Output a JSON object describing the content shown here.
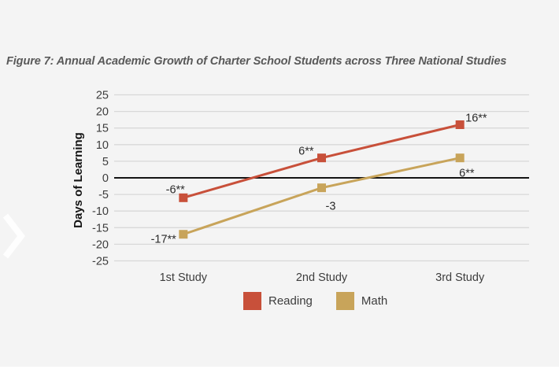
{
  "page": {
    "background_color": "#f4f4f4",
    "bottom_strip_color": "#ffffff"
  },
  "carousel": {
    "next_arrow": "chevron-right",
    "arrow_color": "#ffffff"
  },
  "chart_data": {
    "type": "line",
    "title": "Figure 7: Annual Academic Growth of Charter School Students across Three National Studies",
    "xlabel": "",
    "ylabel": "Days of Learning",
    "categories": [
      "1st Study",
      "2nd Study",
      "3rd Study"
    ],
    "ylim": [
      -25,
      25
    ],
    "ytick_step": 5,
    "yticks": [
      25,
      20,
      15,
      10,
      5,
      0,
      -5,
      -10,
      -15,
      -20,
      -25
    ],
    "grid": true,
    "gridline_color": "#d8d8d8",
    "zero_line_color": "#141414",
    "legend_position": "bottom",
    "series": [
      {
        "name": "Reading",
        "color": "#c8503a",
        "values": [
          -6,
          6,
          16
        ],
        "point_labels": [
          "-6**",
          "6**",
          "16**"
        ]
      },
      {
        "name": "Math",
        "color": "#c8a45a",
        "values": [
          -17,
          -3,
          6
        ],
        "point_labels": [
          "-17**",
          "-3",
          "6**"
        ]
      }
    ]
  }
}
